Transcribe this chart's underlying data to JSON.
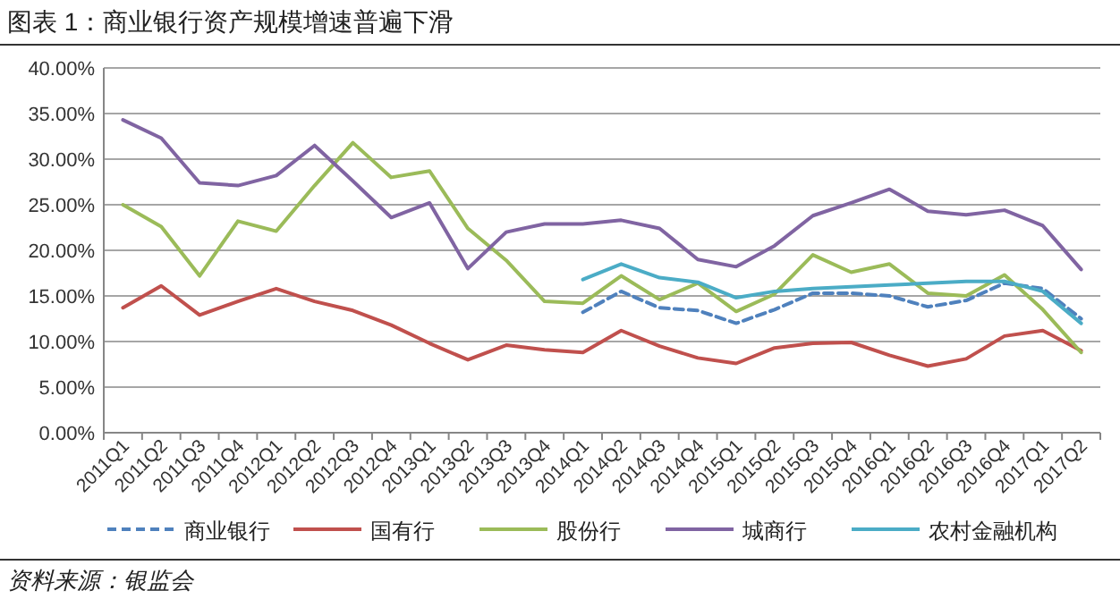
{
  "chart_data": {
    "type": "line",
    "title": "图表 1：商业银行资产规模增速普遍下滑",
    "categories": [
      "2011Q1",
      "2011Q2",
      "2011Q3",
      "2011Q4",
      "2012Q1",
      "2012Q2",
      "2012Q3",
      "2012Q4",
      "2013Q1",
      "2013Q2",
      "2013Q3",
      "2013Q4",
      "2014Q1",
      "2014Q2",
      "2014Q3",
      "2014Q4",
      "2015Q1",
      "2015Q2",
      "2015Q3",
      "2015Q4",
      "2016Q1",
      "2016Q2",
      "2016Q3",
      "2016Q4",
      "2017Q1",
      "2017Q2"
    ],
    "series": [
      {
        "name": "商业银行",
        "color": "#4f81bd",
        "line_style": "dashed",
        "values": [
          null,
          null,
          null,
          null,
          null,
          null,
          null,
          null,
          null,
          null,
          null,
          null,
          13.2,
          15.5,
          13.7,
          13.4,
          12.0,
          13.5,
          15.3,
          15.3,
          15.0,
          13.8,
          14.5,
          16.4,
          15.8,
          12.5
        ]
      },
      {
        "name": "国有行",
        "color": "#c0504d",
        "values": [
          13.7,
          16.1,
          12.9,
          14.4,
          15.8,
          14.4,
          13.4,
          11.8,
          9.8,
          8.0,
          9.6,
          9.1,
          8.8,
          11.2,
          9.5,
          8.2,
          7.6,
          9.3,
          9.8,
          9.9,
          8.5,
          7.3,
          8.1,
          10.6,
          11.2,
          9.0
        ]
      },
      {
        "name": "股份行",
        "color": "#9bbb59",
        "values": [
          25.0,
          22.6,
          17.2,
          23.2,
          22.1,
          27.1,
          31.8,
          28.0,
          28.7,
          22.4,
          18.9,
          14.4,
          14.2,
          17.2,
          14.6,
          16.4,
          13.3,
          15.2,
          19.5,
          17.6,
          18.5,
          15.3,
          15.0,
          17.3,
          13.5,
          8.8
        ]
      },
      {
        "name": "城商行",
        "color": "#8064a2",
        "values": [
          34.3,
          32.3,
          27.4,
          27.1,
          28.2,
          31.5,
          27.6,
          23.6,
          25.2,
          18.0,
          22.0,
          22.9,
          22.9,
          23.3,
          22.4,
          19.0,
          18.2,
          20.5,
          23.8,
          25.2,
          26.7,
          24.3,
          23.9,
          24.4,
          22.7,
          17.9
        ]
      },
      {
        "name": "农村金融机构",
        "color": "#4bacc6",
        "values": [
          null,
          null,
          null,
          null,
          null,
          null,
          null,
          null,
          null,
          null,
          null,
          null,
          16.8,
          18.5,
          17.0,
          16.5,
          14.8,
          15.5,
          15.8,
          16.0,
          16.2,
          16.4,
          16.6,
          16.6,
          15.5,
          12.0
        ]
      }
    ],
    "ylim": [
      0,
      40
    ],
    "yticks": [
      {
        "value": 0,
        "label": "0.00%"
      },
      {
        "value": 5,
        "label": "5.00%"
      },
      {
        "value": 10,
        "label": "10.00%"
      },
      {
        "value": 15,
        "label": "15.00%"
      },
      {
        "value": 20,
        "label": "20.00%"
      },
      {
        "value": 25,
        "label": "25.00%"
      },
      {
        "value": 30,
        "label": "30.00%"
      },
      {
        "value": 35,
        "label": "35.00%"
      },
      {
        "value": 40,
        "label": "40.00%"
      }
    ],
    "grid": "y",
    "legend": "bottom",
    "marker": "none",
    "annotations": [
      "资料来源：银监会"
    ]
  }
}
